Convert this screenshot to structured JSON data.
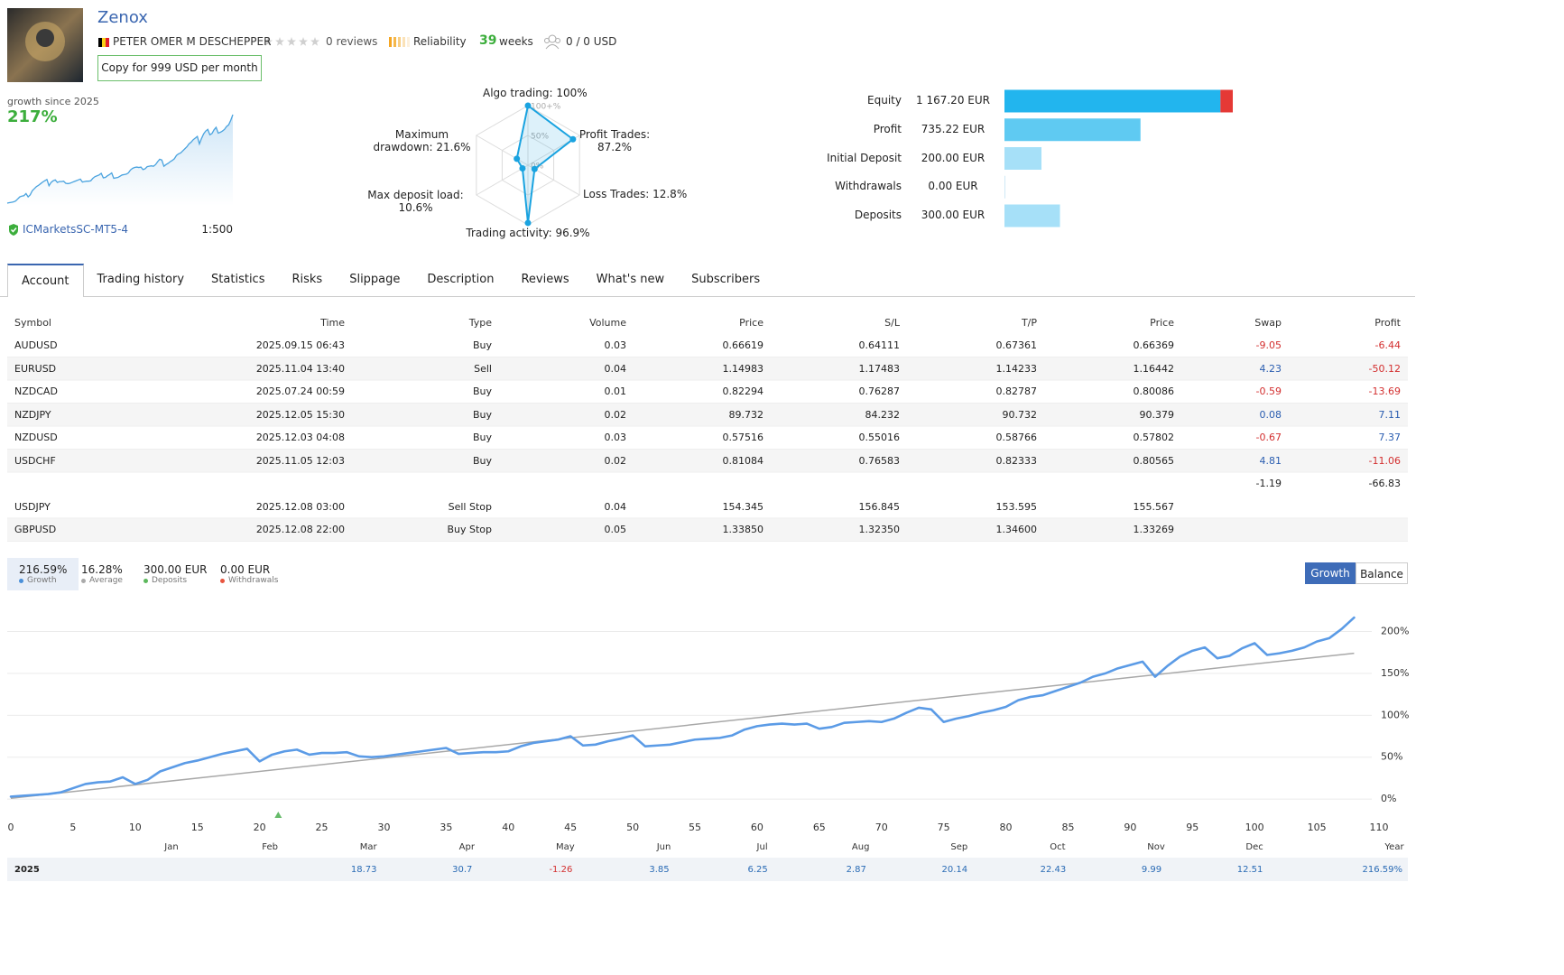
{
  "header": {
    "title": "Zenox",
    "author": "PETER OMER M DESCHEPPER",
    "reviews": "0 reviews",
    "reliability": "Reliability",
    "weeks_count": 39,
    "weeks_label": "weeks",
    "subscribers": "0 / 0 USD",
    "copy_button": "Copy for 999 USD per month"
  },
  "summary": {
    "growth_label": "growth since 2025",
    "growth": "217%",
    "server": "ICMarketsSC-MT5-4",
    "leverage": "1:500"
  },
  "radar": {
    "type": "radar",
    "color": "#1aa3e0",
    "axes": [
      {
        "label": "Algo trading: 100%",
        "value": 100
      },
      {
        "label": "Profit Trades: 87.2%",
        "value": 87.2
      },
      {
        "label": "Loss Trades: 12.8%",
        "value": 12.8
      },
      {
        "label": "Trading activity: 96.9%",
        "value": 96.9
      },
      {
        "label": "Max deposit load: 10.6%",
        "value": 10.6
      },
      {
        "label": "Maximum drawdown: 21.6%",
        "value": 21.6
      }
    ],
    "rticks": [
      {
        "value": 0,
        "label": "0%"
      },
      {
        "value": 50,
        "label": "50%"
      },
      {
        "value": 100,
        "label": "100+%"
      }
    ]
  },
  "balance": {
    "type": "bar",
    "loss_color": "#e53935",
    "items": [
      {
        "label": "Equity",
        "value": 1167.2,
        "value_label": "1 167.20 EUR",
        "color": "#22b5ee"
      },
      {
        "label": "Profit",
        "value": 735.22,
        "value_label": "735.22 EUR",
        "color": "#5fcaf2"
      },
      {
        "label": "Initial Deposit",
        "value": 200,
        "value_label": "200.00 EUR",
        "color": "#a6e0f8"
      },
      {
        "label": "Withdrawals",
        "value": 0,
        "value_label": "0.00 EUR",
        "color": "#a6e0f8"
      },
      {
        "label": "Deposits",
        "value": 300,
        "value_label": "300.00 EUR",
        "color": "#a6e0f8"
      }
    ]
  },
  "tabs": {
    "items": [
      "Account",
      "Trading history",
      "Statistics",
      "Risks",
      "Slippage",
      "Description",
      "Reviews",
      "What's new",
      "Subscribers"
    ],
    "active": 0
  },
  "table": {
    "columns": [
      "Symbol",
      "Time",
      "Type",
      "Volume",
      "Price",
      "S/L",
      "T/P",
      "Price",
      "Swap",
      "Profit"
    ],
    "rows": [
      [
        "AUDUSD",
        "2025.09.15 06:43",
        "Buy",
        "0.03",
        "0.66619",
        "0.64111",
        "0.67361",
        "0.66369",
        "-9.05",
        "-6.44"
      ],
      [
        "EURUSD",
        "2025.11.04 13:40",
        "Sell",
        "0.04",
        "1.14983",
        "1.17483",
        "1.14233",
        "1.16442",
        "4.23",
        "-50.12"
      ],
      [
        "NZDCAD",
        "2025.07.24 00:59",
        "Buy",
        "0.01",
        "0.82294",
        "0.76287",
        "0.82787",
        "0.80086",
        "-0.59",
        "-13.69"
      ],
      [
        "NZDJPY",
        "2025.12.05 15:30",
        "Buy",
        "0.02",
        "89.732",
        "84.232",
        "90.732",
        "90.379",
        "0.08",
        "7.11"
      ],
      [
        "NZDUSD",
        "2025.12.03 04:08",
        "Buy",
        "0.03",
        "0.57516",
        "0.55016",
        "0.58766",
        "0.57802",
        "-0.67",
        "7.37"
      ],
      [
        "USDCHF",
        "2025.11.05 12:03",
        "Buy",
        "0.02",
        "0.81084",
        "0.76583",
        "0.82333",
        "0.80565",
        "4.81",
        "-11.06"
      ]
    ],
    "totals": [
      -1.19,
      -66.83
    ],
    "pending": [
      [
        "USDJPY",
        "2025.12.08 03:00",
        "Sell Stop",
        "0.04",
        "154.345",
        "156.845",
        "153.595",
        "155.567"
      ],
      [
        "GBPUSD",
        "2025.12.08 22:00",
        "Buy Stop",
        "0.05",
        "1.33850",
        "1.32350",
        "1.34600",
        "1.33269"
      ]
    ]
  },
  "stats": [
    {
      "value": "216.59%",
      "label": "Growth",
      "color": "#4a90d9"
    },
    {
      "value": "16.28%",
      "label": "Average",
      "color": "#aaaaaa"
    },
    {
      "value": "300.00 EUR",
      "label": "Deposits",
      "color": "#5cb85c"
    },
    {
      "value": "0.00 EUR",
      "label": "Withdrawals",
      "color": "#e8553f"
    }
  ],
  "chart_buttons": {
    "items": [
      "Growth",
      "Balance"
    ],
    "active": 0
  },
  "chart": {
    "type": "line",
    "grid": true,
    "x": [
      0,
      1,
      2,
      3,
      4,
      5,
      6,
      7,
      8,
      9,
      10,
      11,
      12,
      13,
      14,
      15,
      16,
      17,
      18,
      19,
      20,
      21,
      22,
      23,
      24,
      25,
      26,
      27,
      28,
      29,
      30,
      31,
      32,
      33,
      34,
      35,
      36,
      37,
      38,
      39,
      40,
      41,
      42,
      43,
      44,
      45,
      46,
      47,
      48,
      49,
      50,
      51,
      52,
      53,
      54,
      55,
      56,
      57,
      58,
      59,
      60,
      61,
      62,
      63,
      64,
      65,
      66,
      67,
      68,
      69,
      70,
      71,
      72,
      73,
      74,
      75,
      76,
      77,
      78,
      79,
      80,
      81,
      82,
      83,
      84,
      85,
      86,
      87,
      88,
      89,
      90,
      91,
      92,
      93,
      94,
      95,
      96,
      97,
      98,
      99,
      100,
      101,
      102,
      103,
      104,
      105,
      106,
      107,
      108
    ],
    "series": [
      {
        "name": "Growth",
        "color": "#5b9be6",
        "values": [
          3,
          4,
          5,
          6,
          8,
          13,
          18,
          20,
          21,
          26,
          18,
          23,
          33,
          38,
          43,
          46,
          50,
          54,
          57,
          60,
          45,
          53,
          57,
          59,
          53,
          55,
          55,
          56,
          51,
          50,
          51,
          53,
          55,
          57,
          59,
          61,
          54,
          55,
          56,
          56,
          57,
          63,
          67,
          69,
          71,
          75,
          64,
          65,
          69,
          72,
          76,
          63,
          64,
          65,
          68,
          71,
          72,
          73,
          76,
          83,
          87,
          89,
          90,
          89,
          90,
          84,
          86,
          91,
          92,
          93,
          92,
          96,
          103,
          109,
          107,
          92,
          96,
          99,
          103,
          106,
          110,
          118,
          122,
          124,
          129,
          134,
          139,
          146,
          150,
          156,
          160,
          164,
          146,
          159,
          170,
          177,
          181,
          168,
          171,
          180,
          186,
          172,
          174,
          177,
          181,
          188,
          192,
          203,
          216.59
        ]
      }
    ],
    "trend": {
      "x": [
        0,
        108
      ],
      "values": [
        1,
        174
      ],
      "color": "#a8a8a8"
    },
    "deposit_x": [
      21.5
    ],
    "deposit_color": "#66bb6a",
    "xlim": [
      0,
      110
    ],
    "xticks": [
      0,
      5,
      10,
      15,
      20,
      25,
      30,
      35,
      40,
      45,
      50,
      55,
      60,
      65,
      70,
      75,
      80,
      85,
      90,
      95,
      100,
      105,
      110
    ],
    "ylim": [
      -16,
      221
    ],
    "yticks": [
      {
        "value": 0,
        "label": "0%"
      },
      {
        "value": 50,
        "label": "50%"
      },
      {
        "value": 100,
        "label": "100%"
      },
      {
        "value": 150,
        "label": "150%"
      },
      {
        "value": 200,
        "label": "200%"
      }
    ]
  },
  "year_row": {
    "year": "2025",
    "months": [
      "Jan",
      "Feb",
      "Mar",
      "Apr",
      "May",
      "Jun",
      "Jul",
      "Aug",
      "Sep",
      "Oct",
      "Nov",
      "Dec"
    ],
    "values": [
      null,
      null,
      18.73,
      30.7,
      -1.26,
      3.85,
      6.25,
      2.87,
      20.14,
      22.43,
      9.99,
      12.51
    ],
    "total_label": "Year",
    "total": "216.59%"
  }
}
